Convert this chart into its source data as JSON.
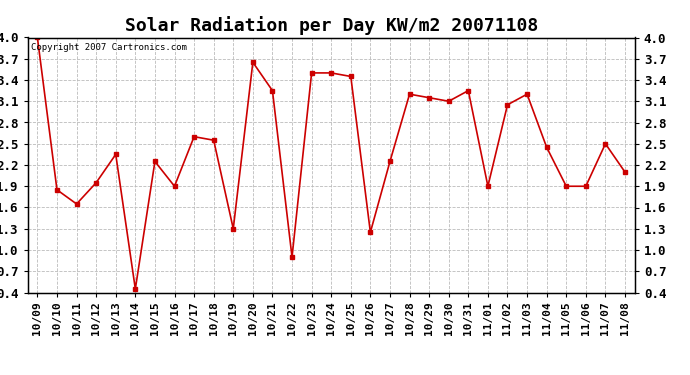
{
  "title": "Solar Radiation per Day KW/m2 20071108",
  "copyright": "Copyright 2007 Cartronics.com",
  "labels": [
    "10/09",
    "10/10",
    "10/11",
    "10/12",
    "10/13",
    "10/14",
    "10/15",
    "10/16",
    "10/17",
    "10/18",
    "10/19",
    "10/20",
    "10/21",
    "10/22",
    "10/23",
    "10/24",
    "10/25",
    "10/26",
    "10/27",
    "10/28",
    "10/29",
    "10/30",
    "10/31",
    "11/01",
    "11/02",
    "11/03",
    "11/04",
    "11/05",
    "11/06",
    "11/07",
    "11/08"
  ],
  "values": [
    4.0,
    1.85,
    1.65,
    1.95,
    2.35,
    0.45,
    2.25,
    1.9,
    2.6,
    2.55,
    1.3,
    3.65,
    3.25,
    0.9,
    3.5,
    3.5,
    3.45,
    1.25,
    2.25,
    3.2,
    3.15,
    3.1,
    3.25,
    1.9,
    3.05,
    3.2,
    2.45,
    1.9,
    1.9,
    2.5,
    2.1
  ],
  "line_color": "#cc0000",
  "marker": "s",
  "marker_size": 2.5,
  "ylim": [
    0.4,
    4.0
  ],
  "yticks": [
    0.4,
    0.7,
    1.0,
    1.3,
    1.6,
    1.9,
    2.2,
    2.5,
    2.8,
    3.1,
    3.4,
    3.7,
    4.0
  ],
  "bg_color": "#ffffff",
  "grid_color": "#bbbbbb",
  "title_fontsize": 13,
  "copyright_fontsize": 6.5,
  "tick_fontsize": 8,
  "ytick_fontsize": 9
}
